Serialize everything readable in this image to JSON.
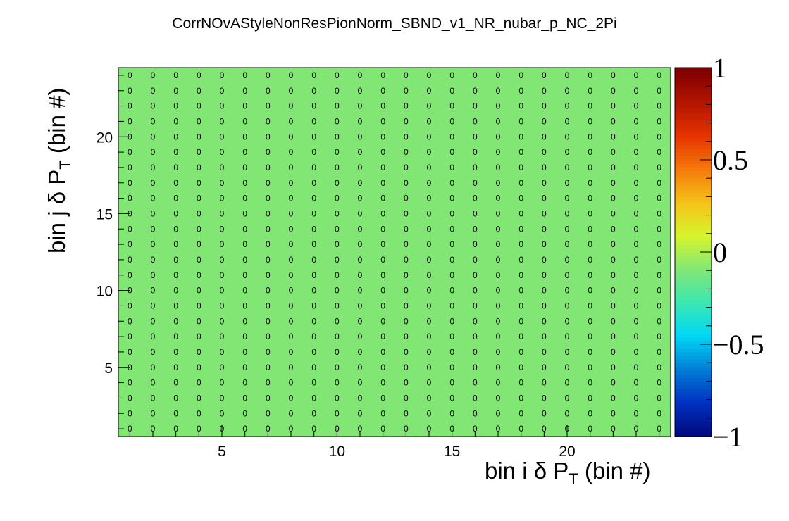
{
  "chart_data": {
    "type": "heatmap",
    "title": "CorrNOvAStyleNonResPionNorm_SBND_v1_NR_nubar_p_NC_2Pi",
    "xlabel": {
      "prefix": "bin i ",
      "symbol": "δ",
      "var": " P",
      "sub": "T",
      "suffix": " (bin #)"
    },
    "ylabel": {
      "prefix": "bin j ",
      "symbol": "δ",
      "var": " P",
      "sub": "T",
      "suffix": " (bin #)"
    },
    "nbins_x": 24,
    "nbins_y": 24,
    "xlim": [
      0.5,
      24.5
    ],
    "ylim": [
      0.5,
      24.5
    ],
    "x_ticks": [
      "5",
      "10",
      "15",
      "20"
    ],
    "y_ticks": [
      "5",
      "10",
      "15",
      "20"
    ],
    "cell_value": 0,
    "cell_label": "0",
    "zlim": [
      -1,
      1
    ],
    "z_ticks": [
      "1",
      "0.5",
      "0",
      "−0.5",
      "−1"
    ],
    "cell_color": "#82e675",
    "palette": [
      "#000a80",
      "#0033c2",
      "#0080d6",
      "#00d8f5",
      "#3ce8b0",
      "#82e675",
      "#d6f52c",
      "#f5c21a",
      "#f57a0a",
      "#e63300",
      "#b31500",
      "#800000"
    ]
  }
}
